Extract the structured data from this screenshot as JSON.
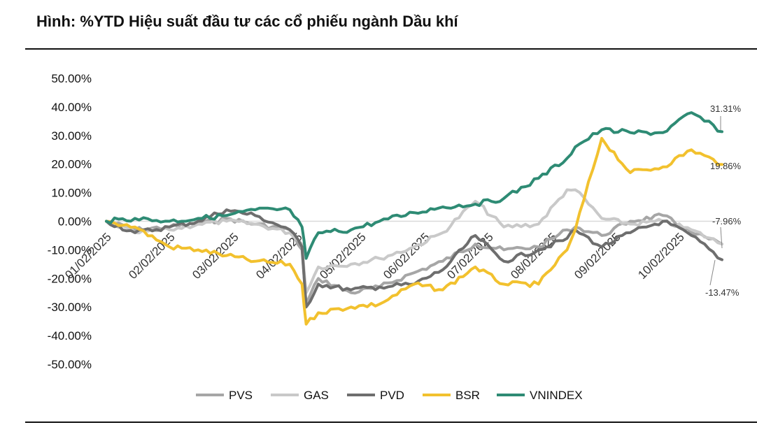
{
  "title": "Hình: %YTD Hiệu suất đầu tư các cổ phiếu ngành Dầu khí",
  "chart_data": {
    "type": "line",
    "title": "Hình: %YTD Hiệu suất đầu tư các cổ phiếu ngành Dầu khí",
    "xlabel": "",
    "ylabel": "",
    "ylim": [
      -50,
      50
    ],
    "yticks": [
      50,
      40,
      30,
      20,
      10,
      0,
      -10,
      -20,
      -30,
      -40,
      -50
    ],
    "ytick_labels": [
      "50.00%",
      "40.00%",
      "30.00%",
      "20.00%",
      "10.00%",
      "0.00%",
      "-10.00%",
      "-20.00%",
      "-30.00%",
      "-40.00%",
      "-50.00%"
    ],
    "x_tick_labels": [
      "01/02/2025",
      "02/02/2025",
      "03/02/2025",
      "04/02/2025",
      "05/02/2025",
      "06/02/2025",
      "07/02/2025",
      "08/02/2025",
      "09/02/2025",
      "10/02/2025"
    ],
    "grid": false,
    "legend_position": "bottom",
    "series": [
      {
        "name": "PVS",
        "color": "#a6a6a6",
        "x": [
          "01/02",
          "01/16",
          "02/02",
          "02/16",
          "03/02",
          "03/16",
          "04/02",
          "04/08",
          "04/10",
          "04/16",
          "05/02",
          "05/16",
          "06/02",
          "06/16",
          "07/02",
          "07/16",
          "08/02",
          "08/16",
          "08/20",
          "09/02",
          "09/16",
          "10/02",
          "10/16",
          "10/31"
        ],
        "values": [
          0,
          -3,
          -2,
          -1,
          1,
          -1,
          -3,
          -10,
          -29,
          -20,
          -25,
          -23,
          -18,
          -14,
          -8,
          -10,
          -9,
          -3,
          -2,
          -5,
          0,
          2,
          -4,
          -7.96
        ]
      },
      {
        "name": "GAS",
        "color": "#c9c9c9",
        "x": [
          "01/02",
          "01/16",
          "02/02",
          "02/16",
          "03/02",
          "03/16",
          "04/02",
          "04/08",
          "04/10",
          "04/16",
          "05/02",
          "05/16",
          "06/02",
          "06/16",
          "07/02",
          "07/16",
          "08/02",
          "08/16",
          "08/20",
          "09/02",
          "09/16",
          "10/02",
          "10/16",
          "10/31"
        ],
        "values": [
          0,
          -4,
          -3,
          -1,
          0,
          -1,
          -4,
          -8,
          -25,
          -16,
          -15,
          -13,
          -9,
          -4,
          7,
          -2,
          -1,
          11,
          11,
          1,
          -1,
          0,
          -3,
          -8
        ]
      },
      {
        "name": "PVD",
        "color": "#6e6e6e",
        "x": [
          "01/02",
          "01/16",
          "02/02",
          "02/16",
          "03/02",
          "03/16",
          "04/02",
          "04/08",
          "04/10",
          "04/16",
          "05/02",
          "05/16",
          "06/02",
          "06/16",
          "07/02",
          "07/16",
          "08/02",
          "08/16",
          "08/20",
          "09/02",
          "09/16",
          "10/02",
          "10/16",
          "10/31"
        ],
        "values": [
          0,
          -4,
          -2,
          0,
          4,
          2,
          -3,
          -9,
          -30,
          -22,
          -24,
          -23,
          -22,
          -17,
          -5,
          -14,
          -10,
          -6,
          -3,
          -9,
          -4,
          0,
          -5,
          -13.47
        ]
      },
      {
        "name": "BSR",
        "color": "#f2c12e",
        "x": [
          "01/02",
          "01/16",
          "02/02",
          "02/16",
          "03/02",
          "03/16",
          "04/02",
          "04/08",
          "04/10",
          "04/16",
          "05/02",
          "05/16",
          "06/02",
          "06/16",
          "07/02",
          "07/16",
          "08/02",
          "08/16",
          "08/20",
          "09/02",
          "09/16",
          "10/02",
          "10/16",
          "10/31"
        ],
        "values": [
          0,
          -2,
          -9,
          -10,
          -12,
          -14,
          -15,
          -22,
          -36,
          -32,
          -30,
          -29,
          -22,
          -24,
          -16,
          -22,
          -22,
          -10,
          -3,
          29,
          17,
          19,
          25,
          19.86
        ]
      },
      {
        "name": "VNINDEX",
        "color": "#2e8b74",
        "x": [
          "01/02",
          "01/16",
          "02/02",
          "02/16",
          "03/02",
          "03/16",
          "04/02",
          "04/08",
          "04/10",
          "04/16",
          "05/02",
          "05/16",
          "06/02",
          "06/16",
          "07/02",
          "07/16",
          "08/02",
          "08/16",
          "08/20",
          "09/02",
          "09/16",
          "10/02",
          "10/16",
          "10/31"
        ],
        "values": [
          0,
          1,
          0,
          1,
          2,
          4,
          4,
          -2,
          -13,
          -4,
          -3,
          0,
          3,
          5,
          6,
          8,
          15,
          22,
          26,
          32,
          31,
          31,
          38,
          31.31
        ]
      }
    ],
    "annotations": [
      "31.31%",
      "19.86%",
      "-7.96%",
      "-13.47%"
    ]
  }
}
